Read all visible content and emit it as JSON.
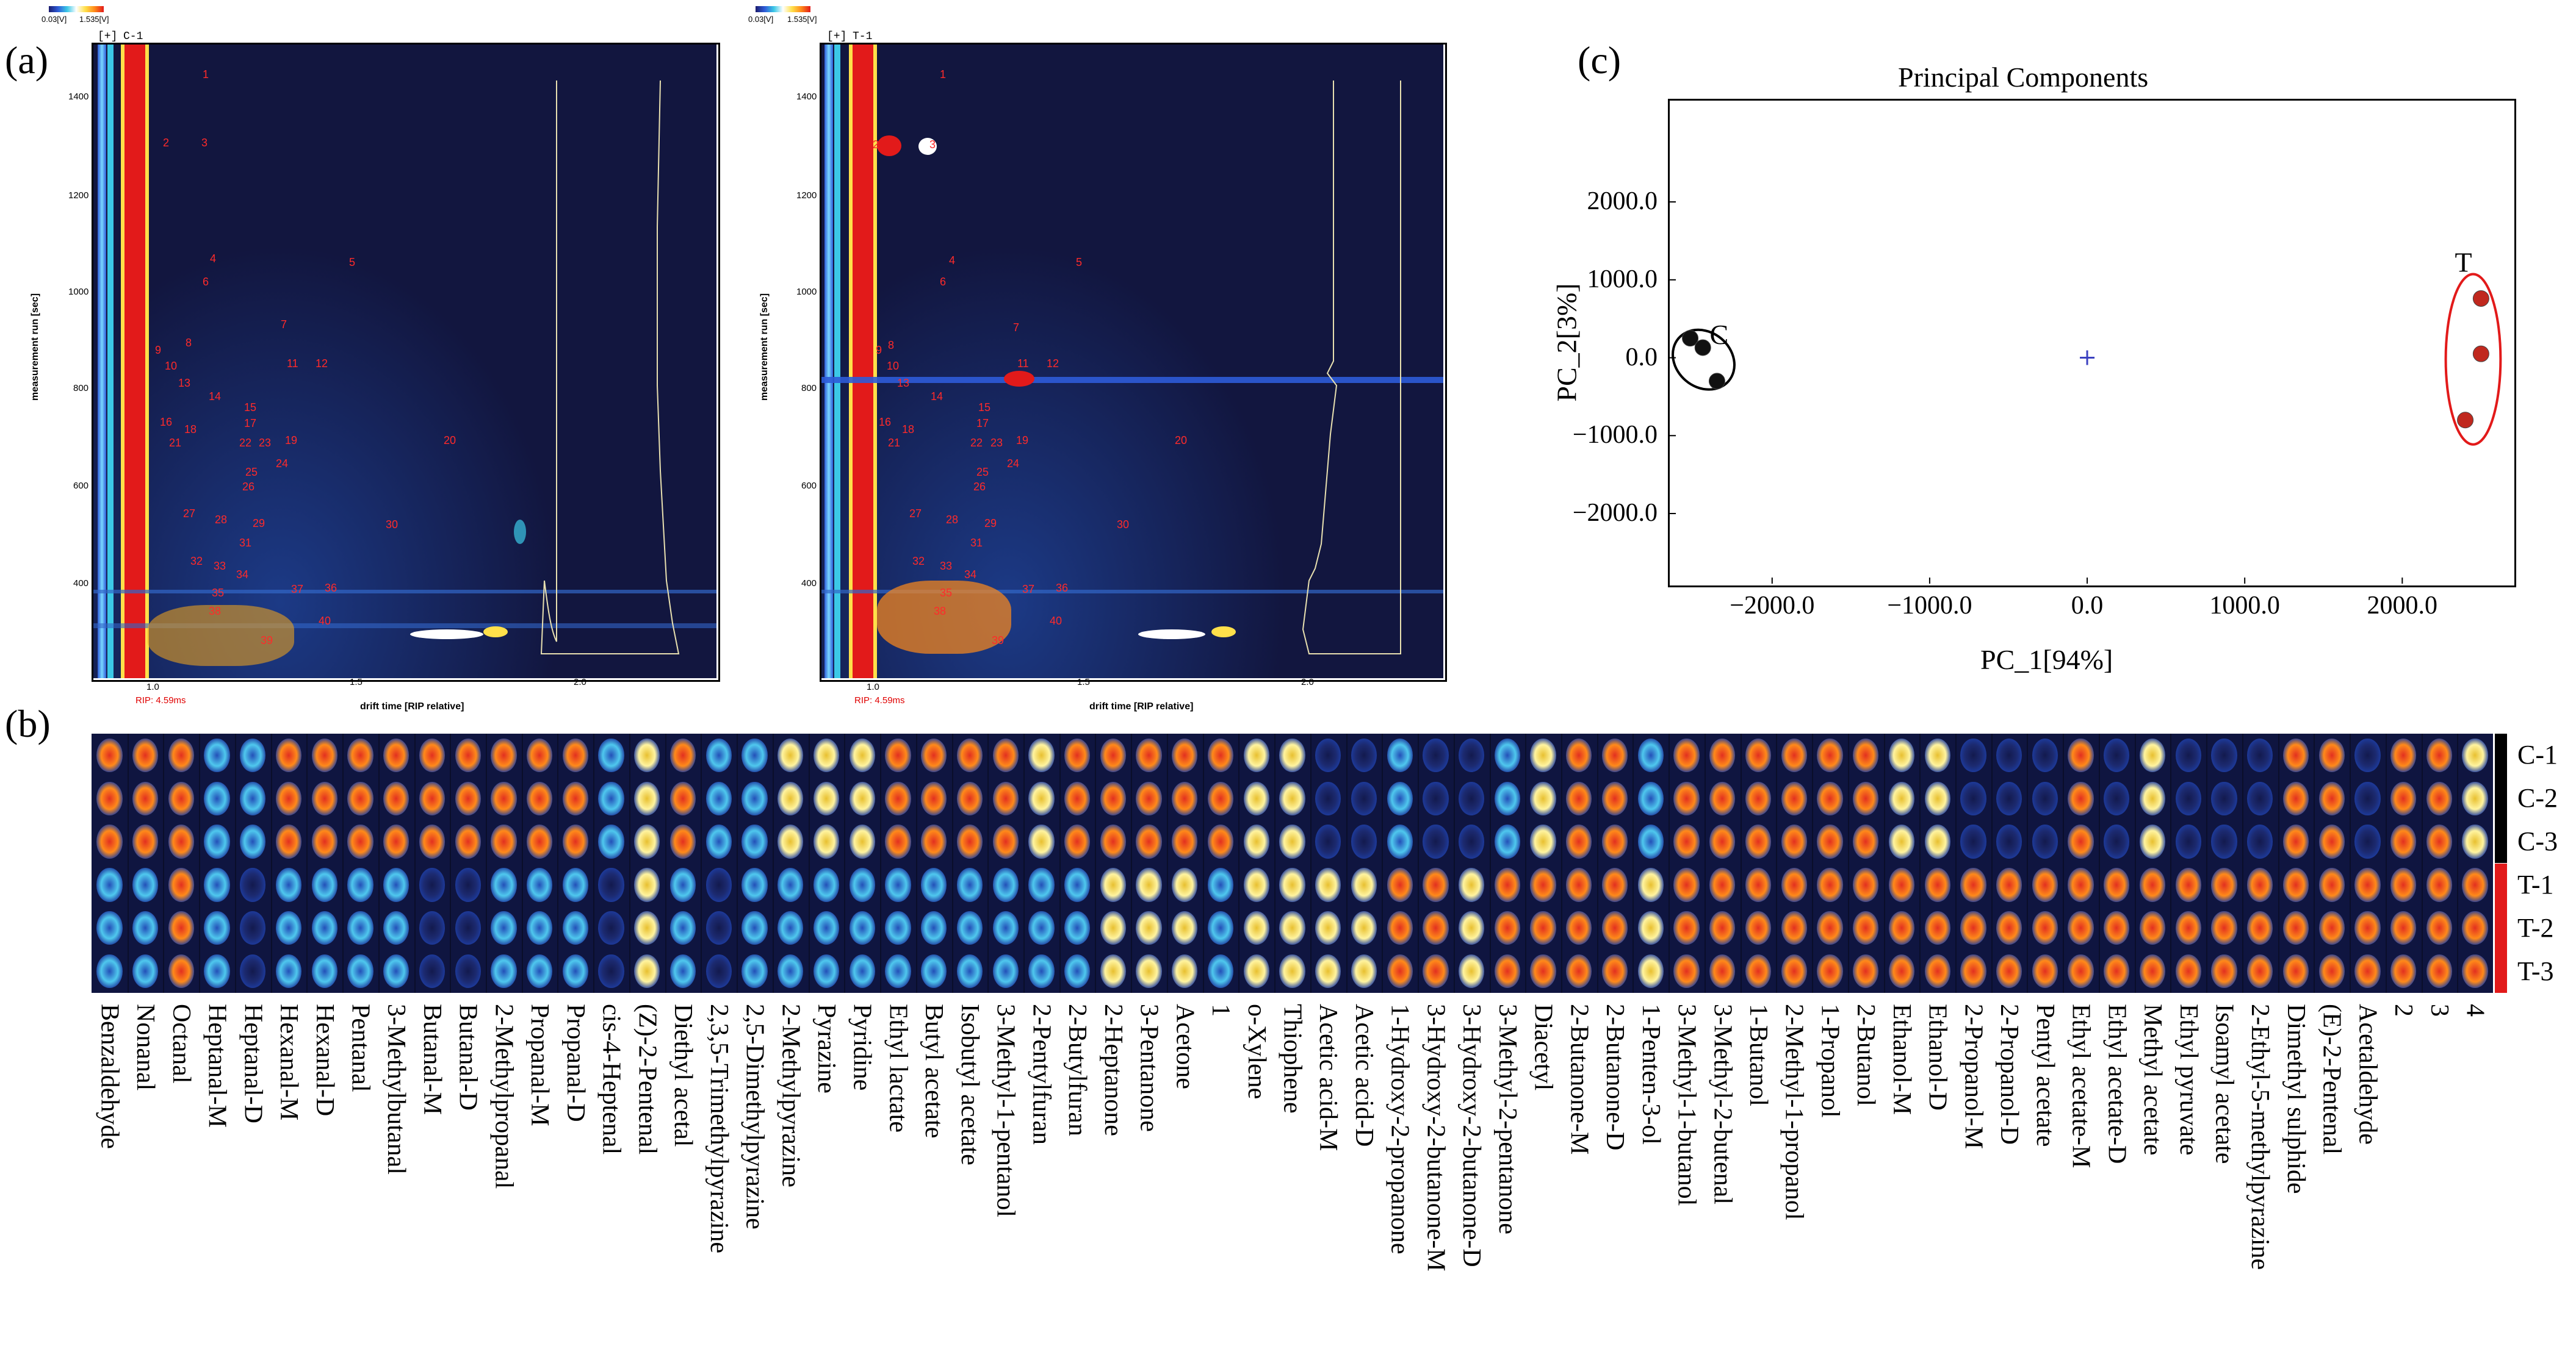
{
  "panels": {
    "a": "(a)",
    "b": "(b)",
    "c": "(c)"
  },
  "gc_plots": [
    {
      "title": "C-1",
      "prefix": "[+]",
      "colorbar_min": "0.03[V]",
      "colorbar_max": "1.535[V]",
      "xlabel": "drift time [RIP relative]",
      "ylabel": "measurement run [sec]",
      "rip": "RIP: 4.59ms",
      "x_ticks": [
        "1.0",
        "1.5",
        "2.0"
      ],
      "y_ticks": [
        "1400",
        "1200",
        "1000",
        "800",
        "600",
        "400"
      ],
      "peaks": [
        "1",
        "2",
        "3",
        "4",
        "5",
        "6",
        "7",
        "8",
        "9",
        "10",
        "11",
        "12",
        "13",
        "14",
        "15",
        "16",
        "17",
        "18",
        "19",
        "20",
        "21",
        "22",
        "23",
        "24",
        "25",
        "26",
        "27",
        "28",
        "29",
        "30",
        "31",
        "32",
        "33",
        "34",
        "35",
        "36",
        "37",
        "38",
        "39",
        "40"
      ]
    },
    {
      "title": "T-1",
      "prefix": "[+]",
      "colorbar_min": "0.03[V]",
      "colorbar_max": "1.535[V]",
      "xlabel": "drift time [RIP relative]",
      "ylabel": "measurement run [sec]",
      "rip": "RIP: 4.59ms",
      "x_ticks": [
        "1.0",
        "1.5",
        "2.0"
      ],
      "y_ticks": [
        "1400",
        "1200",
        "1000",
        "800",
        "600",
        "400"
      ],
      "peaks": [
        "1",
        "2",
        "3",
        "4",
        "5",
        "6",
        "7",
        "8",
        "9",
        "10",
        "11",
        "12",
        "13",
        "14",
        "15",
        "16",
        "17",
        "18",
        "19",
        "20",
        "21",
        "22",
        "23",
        "24",
        "25",
        "26",
        "27",
        "28",
        "29",
        "30",
        "31",
        "32",
        "33",
        "34",
        "35",
        "36",
        "37",
        "38",
        "39",
        "40"
      ]
    }
  ],
  "chart_data": {
    "type": "scatter",
    "title": "Principal Components",
    "xlabel": "PC_1[94%]",
    "ylabel": "PC_2[3%]",
    "xlim": [
      -2650,
      2700
    ],
    "ylim": [
      -2900,
      3300
    ],
    "x_ticks": [
      "−2000.0",
      "−1000.0",
      "0.0",
      "1000.0",
      "2000.0"
    ],
    "x_tick_values": [
      -2000,
      -1000,
      0,
      1000,
      2000
    ],
    "y_ticks": [
      "2000.0",
      "1000.0",
      "0.0",
      "−1000.0",
      "−2000.0"
    ],
    "y_tick_values": [
      2000,
      1000,
      0,
      -1000,
      -2000
    ],
    "series": [
      {
        "name": "C",
        "color": "#000000",
        "points": [
          [
            -2520,
            250
          ],
          [
            -2440,
            130
          ],
          [
            -2350,
            -300
          ]
        ]
      },
      {
        "name": "T",
        "color": "#e21a1a",
        "points": [
          [
            2500,
            760
          ],
          [
            2500,
            50
          ],
          [
            2400,
            -800
          ]
        ]
      }
    ],
    "center_marker": [
      0,
      0
    ]
  },
  "heatmap": {
    "samples": [
      "C-1",
      "C-2",
      "C-3",
      "T-1",
      "T-2",
      "T-3"
    ],
    "sample_colors": [
      "#000000",
      "#000000",
      "#000000",
      "#e21a1a",
      "#e21a1a",
      "#e21a1a"
    ],
    "compounds": [
      "Benzaldehyde",
      "Nonanal",
      "Octanal",
      "Heptanal-M",
      "Heptanal-D",
      "Hexanal-M",
      "Hexanal-D",
      "Pentanal",
      "3-Methylbutanal",
      "Butanal-M",
      "Butanal-D",
      "2-Methylpropanal",
      "Propanal-M",
      "Propanal-D",
      "cis-4-Heptenal",
      "(Z)-2-Pentenal",
      "Diethyl acetal",
      "2,3,5-Trimethylpyrazine",
      "2,5-Dimethylpyrazine",
      "2-Methylpyrazine",
      "Pyrazine",
      "Pyridine",
      "Ethyl lactate",
      "Butyl acetate",
      "Isobutyl acetate",
      "3-Methyl-1-pentanol",
      "2-Pentylfuran",
      "2-Butylfuran",
      "2-Heptanone",
      "3-Pentanone",
      "Acetone",
      "1",
      "o-Xylene",
      "Thiophene",
      "Acetic acid-M",
      "Acetic acid-D",
      "1-Hydroxy-2-propanone",
      "3-Hydroxy-2-butanone-M",
      "3-Hydroxy-2-butanone-D",
      "3-Methyl-2-pentanone",
      "Diacetyl",
      "2-Butanone-M",
      "2-Butanone-D",
      "1-Penten-3-ol",
      "3-Methyl-1-butanol",
      "3-Methyl-2-butenal",
      "1-Butanol",
      "2-Methyl-1-propanol",
      "1-Propanol",
      "2-Butanol",
      "Ethanol-M",
      "Ethanol-D",
      "2-Propanol-M",
      "2-Propanol-D",
      "Pentyl acetate",
      "Ethyl acetate-M",
      "Ethyl acetate-D",
      "Methyl acetate",
      "Ethyl pyruvate",
      "Isoamyl acetate",
      "2-Ethyl-5-methylpyrazine",
      "Dimethyl sulphide",
      "(E)-2-Pentenal",
      "Acetaldehyde",
      "2",
      "3",
      "4"
    ],
    "intensities_C": [
      3,
      3,
      3,
      1,
      1,
      3,
      3,
      3,
      3,
      3,
      3,
      3,
      3,
      3,
      1,
      2,
      3,
      1,
      1,
      2,
      2,
      2,
      3,
      3,
      3,
      3,
      2,
      3,
      3,
      3,
      3,
      3,
      2,
      2,
      0,
      0,
      1,
      0,
      0,
      1,
      2,
      3,
      3,
      1,
      3,
      3,
      3,
      3,
      3,
      3,
      2,
      2,
      0,
      0,
      0,
      3,
      0,
      2,
      0,
      0,
      0,
      3,
      3,
      0,
      3,
      3,
      2
    ],
    "intensities_T": [
      1,
      1,
      3,
      1,
      0,
      1,
      1,
      1,
      1,
      0,
      0,
      1,
      1,
      1,
      0,
      2,
      1,
      0,
      1,
      1,
      1,
      1,
      1,
      1,
      1,
      1,
      1,
      1,
      2,
      2,
      2,
      1,
      2,
      2,
      2,
      2,
      3,
      3,
      2,
      3,
      3,
      3,
      3,
      2,
      3,
      3,
      3,
      3,
      3,
      3,
      3,
      3,
      3,
      3,
      3,
      3,
      3,
      3,
      3,
      3,
      3,
      3,
      3,
      3,
      3,
      3,
      3
    ]
  }
}
